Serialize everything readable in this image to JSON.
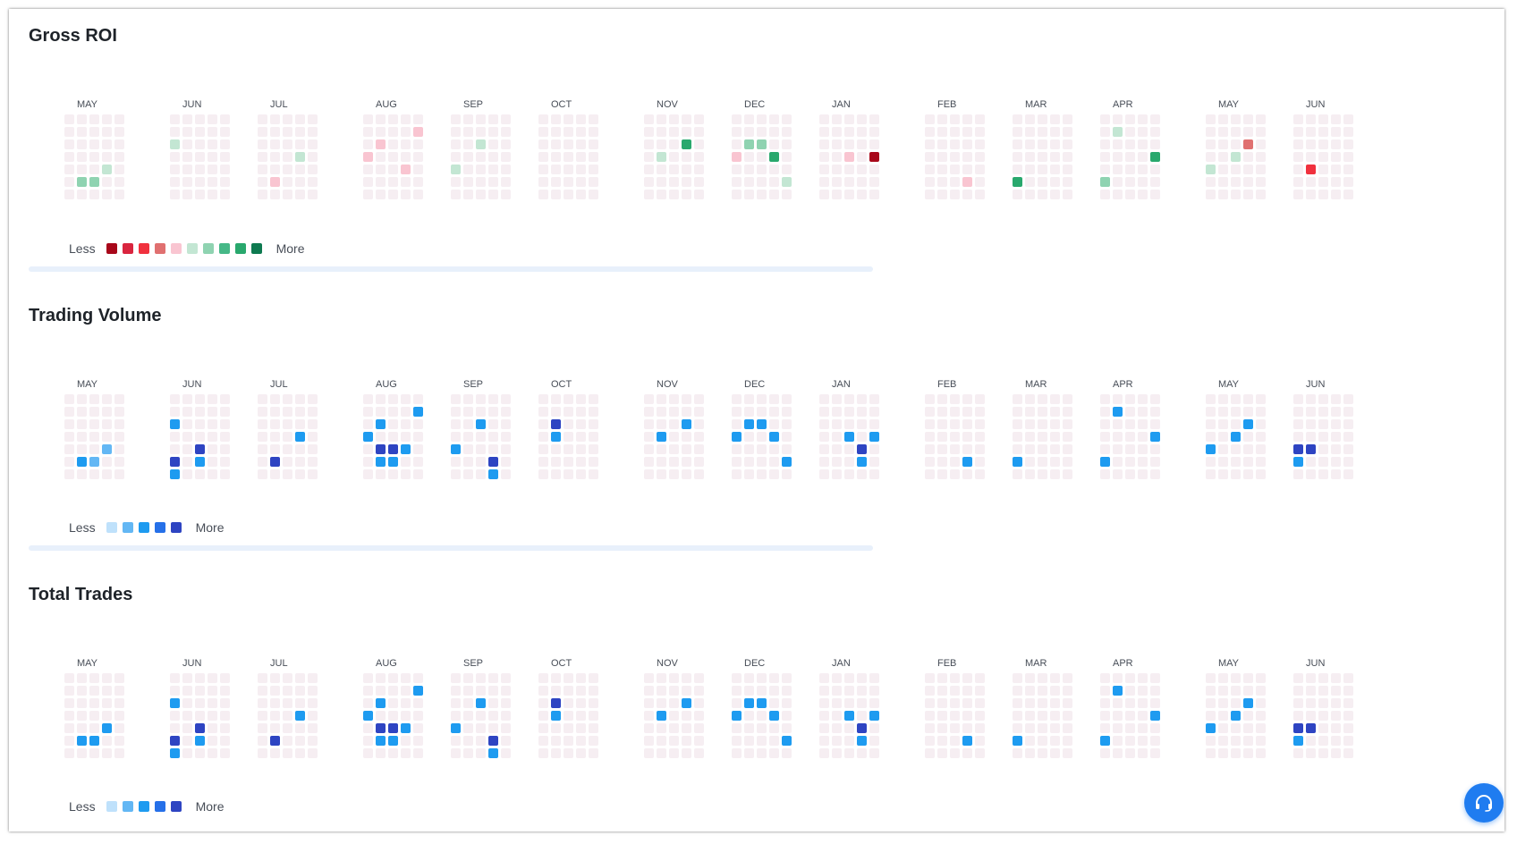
{
  "colors": {
    "empty_cell": "#f6eef2",
    "roi_scale": [
      "#a8071a",
      "#d9253f",
      "#f0313e",
      "#e07070",
      "#f9c5d1",
      "#c3e6d3",
      "#8fd3b1",
      "#46b887",
      "#29a86d",
      "#0e7a50"
    ],
    "blue_scale": [
      "#bfe1fb",
      "#63b7f4",
      "#1e9bf0",
      "#2670e8",
      "#2e44c2"
    ],
    "fab": "#1f7cf0"
  },
  "icons": {
    "support": "headset-icon"
  },
  "legend": {
    "less": "Less",
    "more": "More"
  },
  "sections": [
    {
      "id": "roi",
      "title": "Gross ROI"
    },
    {
      "id": "vol",
      "title": "Trading Volume"
    },
    {
      "id": "trades",
      "title": "Total Trades"
    }
  ],
  "chart_data": [
    {
      "type": "heatmap",
      "title": "Gross ROI",
      "months": [
        "MAY",
        "JUN",
        "JUL",
        "AUG",
        "SEP",
        "OCT",
        "NOV",
        "DEC",
        "JAN",
        "FEB",
        "MAR",
        "APR",
        "MAY",
        "JUN"
      ],
      "rows": 7,
      "scale": "diverging, 10 levels (0 = most negative, 9 = most positive)",
      "cells": [
        {
          "month": 0,
          "week": 1,
          "day": 5,
          "level": 6
        },
        {
          "month": 0,
          "week": 2,
          "day": 5,
          "level": 6
        },
        {
          "month": 0,
          "week": 3,
          "day": 4,
          "level": 5
        },
        {
          "month": 1,
          "week": 0,
          "day": 2,
          "level": 5
        },
        {
          "month": 2,
          "week": 1,
          "day": 5,
          "level": 4
        },
        {
          "month": 2,
          "week": 3,
          "day": 3,
          "level": 5
        },
        {
          "month": 3,
          "week": 4,
          "day": 1,
          "level": 4
        },
        {
          "month": 3,
          "week": 1,
          "day": 2,
          "level": 4
        },
        {
          "month": 3,
          "week": 0,
          "day": 3,
          "level": 4
        },
        {
          "month": 3,
          "week": 3,
          "day": 4,
          "level": 4
        },
        {
          "month": 4,
          "week": 2,
          "day": 2,
          "level": 5
        },
        {
          "month": 4,
          "week": 0,
          "day": 4,
          "level": 5
        },
        {
          "month": 6,
          "week": 3,
          "day": 2,
          "level": 8
        },
        {
          "month": 6,
          "week": 1,
          "day": 3,
          "level": 5
        },
        {
          "month": 7,
          "week": 1,
          "day": 2,
          "level": 6
        },
        {
          "month": 7,
          "week": 2,
          "day": 2,
          "level": 6
        },
        {
          "month": 7,
          "week": 0,
          "day": 3,
          "level": 4
        },
        {
          "month": 7,
          "week": 3,
          "day": 3,
          "level": 8
        },
        {
          "month": 7,
          "week": 4,
          "day": 5,
          "level": 5
        },
        {
          "month": 8,
          "week": 2,
          "day": 3,
          "level": 4
        },
        {
          "month": 8,
          "week": 4,
          "day": 3,
          "level": 0
        },
        {
          "month": 9,
          "week": 3,
          "day": 5,
          "level": 4
        },
        {
          "month": 10,
          "week": 0,
          "day": 5,
          "level": 8
        },
        {
          "month": 11,
          "week": 1,
          "day": 1,
          "level": 5
        },
        {
          "month": 11,
          "week": 4,
          "day": 3,
          "level": 8
        },
        {
          "month": 11,
          "week": 0,
          "day": 5,
          "level": 6
        },
        {
          "month": 12,
          "week": 3,
          "day": 2,
          "level": 3
        },
        {
          "month": 12,
          "week": 2,
          "day": 3,
          "level": 5
        },
        {
          "month": 12,
          "week": 0,
          "day": 4,
          "level": 5
        },
        {
          "month": 13,
          "week": 1,
          "day": 4,
          "level": 2
        }
      ]
    },
    {
      "type": "heatmap",
      "title": "Trading Volume",
      "months": [
        "MAY",
        "JUN",
        "JUL",
        "AUG",
        "SEP",
        "OCT",
        "NOV",
        "DEC",
        "JAN",
        "FEB",
        "MAR",
        "APR",
        "MAY",
        "JUN"
      ],
      "rows": 7,
      "scale": "sequential, 5 levels (0 = less, 4 = more)",
      "cells": [
        {
          "month": 0,
          "week": 3,
          "day": 4,
          "level": 1
        },
        {
          "month": 0,
          "week": 1,
          "day": 5,
          "level": 2
        },
        {
          "month": 0,
          "week": 2,
          "day": 5,
          "level": 1
        },
        {
          "month": 1,
          "week": 0,
          "day": 2,
          "level": 2
        },
        {
          "month": 1,
          "week": 2,
          "day": 4,
          "level": 4
        },
        {
          "month": 1,
          "week": 0,
          "day": 5,
          "level": 4
        },
        {
          "month": 1,
          "week": 2,
          "day": 5,
          "level": 2
        },
        {
          "month": 1,
          "week": 0,
          "day": 6,
          "level": 2
        },
        {
          "month": 2,
          "week": 3,
          "day": 3,
          "level": 2
        },
        {
          "month": 2,
          "week": 1,
          "day": 5,
          "level": 4
        },
        {
          "month": 3,
          "week": 4,
          "day": 1,
          "level": 2
        },
        {
          "month": 3,
          "week": 1,
          "day": 2,
          "level": 2
        },
        {
          "month": 3,
          "week": 0,
          "day": 3,
          "level": 2
        },
        {
          "month": 3,
          "week": 1,
          "day": 4,
          "level": 4
        },
        {
          "month": 3,
          "week": 2,
          "day": 4,
          "level": 4
        },
        {
          "month": 3,
          "week": 3,
          "day": 4,
          "level": 2
        },
        {
          "month": 3,
          "week": 1,
          "day": 5,
          "level": 2
        },
        {
          "month": 3,
          "week": 2,
          "day": 5,
          "level": 2
        },
        {
          "month": 4,
          "week": 2,
          "day": 2,
          "level": 2
        },
        {
          "month": 4,
          "week": 0,
          "day": 4,
          "level": 2
        },
        {
          "month": 4,
          "week": 3,
          "day": 5,
          "level": 4
        },
        {
          "month": 4,
          "week": 3,
          "day": 6,
          "level": 2
        },
        {
          "month": 5,
          "week": 1,
          "day": 2,
          "level": 4
        },
        {
          "month": 5,
          "week": 1,
          "day": 3,
          "level": 2
        },
        {
          "month": 6,
          "week": 3,
          "day": 2,
          "level": 2
        },
        {
          "month": 6,
          "week": 1,
          "day": 3,
          "level": 2
        },
        {
          "month": 7,
          "week": 1,
          "day": 2,
          "level": 2
        },
        {
          "month": 7,
          "week": 2,
          "day": 2,
          "level": 2
        },
        {
          "month": 7,
          "week": 0,
          "day": 3,
          "level": 2
        },
        {
          "month": 7,
          "week": 3,
          "day": 3,
          "level": 2
        },
        {
          "month": 7,
          "week": 4,
          "day": 5,
          "level": 2
        },
        {
          "month": 8,
          "week": 2,
          "day": 3,
          "level": 2
        },
        {
          "month": 8,
          "week": 4,
          "day": 3,
          "level": 2
        },
        {
          "month": 8,
          "week": 3,
          "day": 4,
          "level": 4
        },
        {
          "month": 8,
          "week": 3,
          "day": 5,
          "level": 2
        },
        {
          "month": 9,
          "week": 3,
          "day": 5,
          "level": 2
        },
        {
          "month": 10,
          "week": 0,
          "day": 5,
          "level": 2
        },
        {
          "month": 11,
          "week": 1,
          "day": 1,
          "level": 2
        },
        {
          "month": 11,
          "week": 4,
          "day": 3,
          "level": 2
        },
        {
          "month": 11,
          "week": 0,
          "day": 5,
          "level": 2
        },
        {
          "month": 12,
          "week": 3,
          "day": 2,
          "level": 2
        },
        {
          "month": 12,
          "week": 2,
          "day": 3,
          "level": 2
        },
        {
          "month": 12,
          "week": 0,
          "day": 4,
          "level": 2
        },
        {
          "month": 13,
          "week": 0,
          "day": 4,
          "level": 4
        },
        {
          "month": 13,
          "week": 1,
          "day": 4,
          "level": 4
        },
        {
          "month": 13,
          "week": 0,
          "day": 5,
          "level": 2
        }
      ]
    },
    {
      "type": "heatmap",
      "title": "Total Trades",
      "months": [
        "MAY",
        "JUN",
        "JUL",
        "AUG",
        "SEP",
        "OCT",
        "NOV",
        "DEC",
        "JAN",
        "FEB",
        "MAR",
        "APR",
        "MAY",
        "JUN"
      ],
      "rows": 7,
      "scale": "sequential, 5 levels (0 = less, 4 = more)",
      "cells": [
        {
          "month": 0,
          "week": 3,
          "day": 4,
          "level": 2
        },
        {
          "month": 0,
          "week": 1,
          "day": 5,
          "level": 2
        },
        {
          "month": 0,
          "week": 2,
          "day": 5,
          "level": 2
        },
        {
          "month": 1,
          "week": 0,
          "day": 2,
          "level": 2
        },
        {
          "month": 1,
          "week": 2,
          "day": 4,
          "level": 4
        },
        {
          "month": 1,
          "week": 0,
          "day": 5,
          "level": 4
        },
        {
          "month": 1,
          "week": 2,
          "day": 5,
          "level": 2
        },
        {
          "month": 1,
          "week": 0,
          "day": 6,
          "level": 2
        },
        {
          "month": 2,
          "week": 3,
          "day": 3,
          "level": 2
        },
        {
          "month": 2,
          "week": 1,
          "day": 5,
          "level": 4
        },
        {
          "month": 3,
          "week": 4,
          "day": 1,
          "level": 2
        },
        {
          "month": 3,
          "week": 1,
          "day": 2,
          "level": 2
        },
        {
          "month": 3,
          "week": 0,
          "day": 3,
          "level": 2
        },
        {
          "month": 3,
          "week": 1,
          "day": 4,
          "level": 4
        },
        {
          "month": 3,
          "week": 2,
          "day": 4,
          "level": 4
        },
        {
          "month": 3,
          "week": 3,
          "day": 4,
          "level": 2
        },
        {
          "month": 3,
          "week": 1,
          "day": 5,
          "level": 2
        },
        {
          "month": 3,
          "week": 2,
          "day": 5,
          "level": 2
        },
        {
          "month": 4,
          "week": 2,
          "day": 2,
          "level": 2
        },
        {
          "month": 4,
          "week": 0,
          "day": 4,
          "level": 2
        },
        {
          "month": 4,
          "week": 3,
          "day": 5,
          "level": 4
        },
        {
          "month": 4,
          "week": 3,
          "day": 6,
          "level": 2
        },
        {
          "month": 5,
          "week": 1,
          "day": 2,
          "level": 4
        },
        {
          "month": 5,
          "week": 1,
          "day": 3,
          "level": 2
        },
        {
          "month": 6,
          "week": 3,
          "day": 2,
          "level": 2
        },
        {
          "month": 6,
          "week": 1,
          "day": 3,
          "level": 2
        },
        {
          "month": 7,
          "week": 1,
          "day": 2,
          "level": 2
        },
        {
          "month": 7,
          "week": 2,
          "day": 2,
          "level": 2
        },
        {
          "month": 7,
          "week": 0,
          "day": 3,
          "level": 2
        },
        {
          "month": 7,
          "week": 3,
          "day": 3,
          "level": 2
        },
        {
          "month": 7,
          "week": 4,
          "day": 5,
          "level": 2
        },
        {
          "month": 8,
          "week": 2,
          "day": 3,
          "level": 2
        },
        {
          "month": 8,
          "week": 4,
          "day": 3,
          "level": 2
        },
        {
          "month": 8,
          "week": 3,
          "day": 4,
          "level": 4
        },
        {
          "month": 8,
          "week": 3,
          "day": 5,
          "level": 2
        },
        {
          "month": 9,
          "week": 3,
          "day": 5,
          "level": 2
        },
        {
          "month": 10,
          "week": 0,
          "day": 5,
          "level": 2
        },
        {
          "month": 11,
          "week": 1,
          "day": 1,
          "level": 2
        },
        {
          "month": 11,
          "week": 4,
          "day": 3,
          "level": 2
        },
        {
          "month": 11,
          "week": 0,
          "day": 5,
          "level": 2
        },
        {
          "month": 12,
          "week": 3,
          "day": 2,
          "level": 2
        },
        {
          "month": 12,
          "week": 2,
          "day": 3,
          "level": 2
        },
        {
          "month": 12,
          "week": 0,
          "day": 4,
          "level": 2
        },
        {
          "month": 13,
          "week": 0,
          "day": 4,
          "level": 4
        },
        {
          "month": 13,
          "week": 1,
          "day": 4,
          "level": 4
        },
        {
          "month": 13,
          "week": 0,
          "day": 5,
          "level": 2
        }
      ]
    }
  ]
}
